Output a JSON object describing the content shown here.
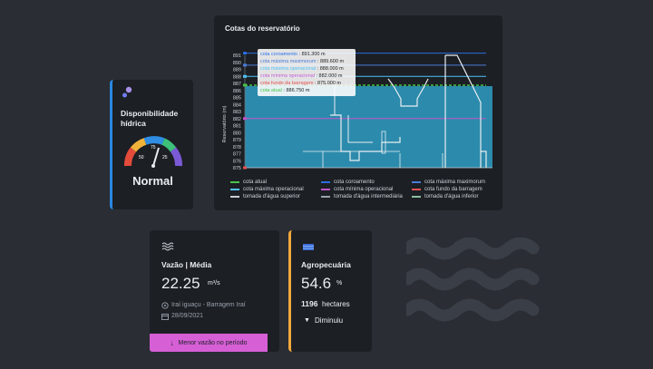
{
  "availability": {
    "title": "Disponibilidade hídrica",
    "status": "Normal",
    "gauge_labels": [
      "50",
      "75",
      "25"
    ],
    "accent": "#2a86e0"
  },
  "reservoir": {
    "title": "Cotas do reservatório",
    "ylabel": "Reservatório (m)",
    "yticks": [
      "891",
      "890",
      "889",
      "888",
      "887",
      "886",
      "885",
      "884",
      "883",
      "882",
      "881",
      "880",
      "879",
      "878",
      "877",
      "876",
      "875"
    ],
    "tooltip": [
      {
        "label": "cota coroamento",
        "value": "891.300 m",
        "color": "#2a6ee0"
      },
      {
        "label": "cota máxima maximorum",
        "value": "889.600 m",
        "color": "#4b7bd8"
      },
      {
        "label": "cota máxima operacional",
        "value": "888.000 m",
        "color": "#4fc3f7"
      },
      {
        "label": "cota mínima operacional",
        "value": "882.000 m",
        "color": "#c054c8"
      },
      {
        "label": "cota fundo da barragem",
        "value": "875.000 m",
        "color": "#e55353"
      },
      {
        "label": "cota atual",
        "value": "886.750 m",
        "color": "#47c447"
      }
    ],
    "legend": [
      {
        "label": "cota atual",
        "color": "#47c447"
      },
      {
        "label": "cota coroamento",
        "color": "#2a6ee0"
      },
      {
        "label": "cota máxima maximorum",
        "color": "#4b7bd8"
      },
      {
        "label": "cota máxima operacional",
        "color": "#4fc3f7"
      },
      {
        "label": "cota mínima operacional",
        "color": "#c054c8"
      },
      {
        "label": "cota fundo da barragem",
        "color": "#e55353"
      },
      {
        "label": "tomada d'água superior",
        "color": "#c9ced6"
      },
      {
        "label": "tomada d'água intermediária",
        "color": "#9aa3ad"
      },
      {
        "label": "tomada d'água inferior",
        "color": "#8fbf9f"
      }
    ]
  },
  "chart_data": {
    "type": "line",
    "title": "Cotas do reservatório",
    "ylabel": "Reservatório (m)",
    "ylim": [
      875,
      891
    ],
    "series": [
      {
        "name": "cota coroamento",
        "value": 891.3
      },
      {
        "name": "cota máxima maximorum",
        "value": 889.6
      },
      {
        "name": "cota máxima operacional",
        "value": 888.0
      },
      {
        "name": "cota mínima operacional",
        "value": 882.0
      },
      {
        "name": "cota fundo da barragem",
        "value": 875.0
      },
      {
        "name": "cota atual",
        "value": 886.75
      }
    ]
  },
  "flow": {
    "title": "Vazão | Média",
    "value": "22.25",
    "unit": "m³/s",
    "location": "Iraí iguaçu - Barragem Iraí",
    "date": "28/09/2021",
    "button_label": "Menor vazão no período",
    "button_color": "#d65fd6"
  },
  "agro": {
    "title": "Agropecuária",
    "value": "54.6",
    "unit": "%",
    "hectares_value": "1196",
    "hectares_label": "hectares",
    "trend_label": "Diminuiu",
    "accent": "#f2a93b"
  }
}
